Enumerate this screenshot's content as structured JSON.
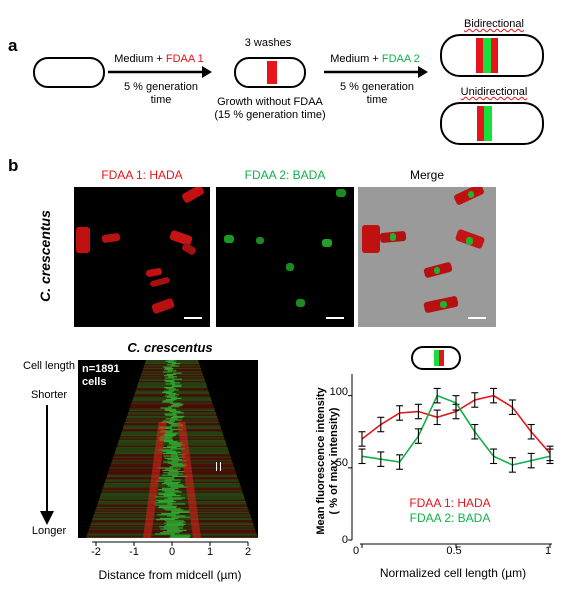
{
  "panel_a": {
    "letter": "a",
    "step1": {
      "text_prefix": "Medium + ",
      "fdaa": "FDAA 1",
      "duration": "5 % generation time"
    },
    "washes": "3 washes",
    "growth": "Growth without FDAA",
    "growth_duration": "(15 % generation time)",
    "step2": {
      "text_prefix": "Medium + ",
      "fdaa": "FDAA 2",
      "duration": "5 % generation time"
    },
    "bidirectional": "Bidirectional",
    "unidirectional": "Unidirectional"
  },
  "panel_b": {
    "letter": "b",
    "species": "C. crescentus",
    "image_titles": {
      "fdaa1": "FDAA 1: HADA",
      "fdaa2": "FDAA 2: BADA",
      "merge": "Merge"
    }
  },
  "demograph": {
    "title": "C. crescentus",
    "n_label": "n=1891",
    "cells_label": "cells",
    "cell_length_label": "Cell length",
    "shorter": "Shorter",
    "longer": "Longer",
    "xlabel": "Distance from midcell (µm)",
    "xticks": [
      "-2",
      "-1",
      "0",
      "1",
      "2"
    ]
  },
  "chart_data": {
    "type": "line",
    "xlabel": "Normalized cell length (µm)",
    "ylabel": "Mean fluorescence intensity (% of max intensity)",
    "ylabel_line1": "Mean fluorescence intensity",
    "ylabel_line2": "( % of max intensity)",
    "xlim": [
      0,
      1
    ],
    "ylim": [
      0,
      115
    ],
    "xticks": [
      "0",
      "0.5",
      "1"
    ],
    "yticks": [
      "0",
      "50",
      "100"
    ],
    "x": [
      0,
      0.1,
      0.2,
      0.3,
      0.4,
      0.5,
      0.6,
      0.7,
      0.8,
      0.9,
      1.0
    ],
    "series": [
      {
        "name": "FDAA 1: HADA",
        "color": "#e8141b",
        "values": [
          70,
          80,
          88,
          89,
          85,
          89,
          97,
          100,
          92,
          75,
          60
        ]
      },
      {
        "name": "FDAA 2: BADA",
        "color": "#10b14b",
        "values": [
          58,
          56,
          54,
          72,
          100,
          95,
          75,
          58,
          52,
          55,
          58
        ]
      }
    ],
    "error": 5,
    "legend_position": "bottom-center"
  }
}
